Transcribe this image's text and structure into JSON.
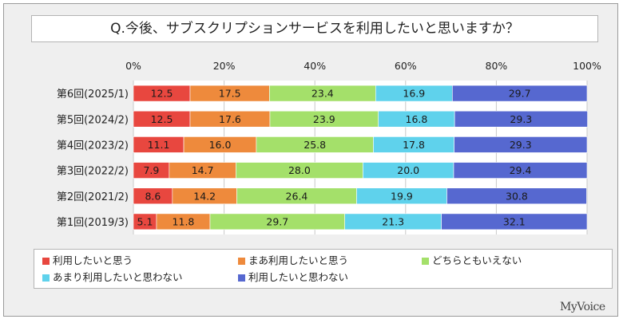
{
  "title": "Q.今後、サブスクリプションサービスを利用したいと思いますか？",
  "brand": "MyVoice",
  "chart_data": {
    "type": "bar",
    "orientation": "horizontal",
    "stacked": true,
    "percent_stacked": true,
    "xlim": [
      0,
      100
    ],
    "xticks": [
      "0%",
      "20%",
      "40%",
      "60%",
      "80%",
      "100%"
    ],
    "grid": true,
    "legend_position": "bottom",
    "categories": [
      "第6回(2025/1)",
      "第5回(2024/2)",
      "第4回(2023/2)",
      "第3回(2022/2)",
      "第2回(2021/2)",
      "第1回(2019/3)"
    ],
    "series": [
      {
        "name": "利用したいと思う",
        "color": "#e8473f",
        "values": [
          12.5,
          12.5,
          11.1,
          7.9,
          8.6,
          5.1
        ]
      },
      {
        "name": "まあ利用したいと思う",
        "color": "#ee8a3c",
        "values": [
          17.5,
          17.6,
          16.0,
          14.7,
          14.2,
          11.8
        ]
      },
      {
        "name": "どちらともいえない",
        "color": "#a4e06a",
        "values": [
          23.4,
          23.9,
          25.8,
          28.0,
          26.4,
          29.7
        ]
      },
      {
        "name": "あまり利用したいと思わない",
        "color": "#5fd2ec",
        "values": [
          16.9,
          16.8,
          17.8,
          20.0,
          19.9,
          21.3
        ]
      },
      {
        "name": "利用したいと思わない",
        "color": "#5668d0",
        "values": [
          29.7,
          29.3,
          29.3,
          29.4,
          30.8,
          32.1
        ]
      }
    ]
  }
}
